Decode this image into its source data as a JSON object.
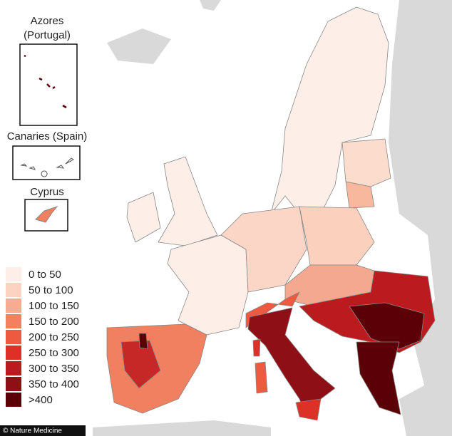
{
  "insets": [
    {
      "title_lines": [
        "Azores",
        "(Portugal)"
      ]
    },
    {
      "title_lines": [
        "Canaries (Spain)"
      ]
    },
    {
      "title_lines": [
        "Cyprus"
      ]
    }
  ],
  "legend": {
    "items": [
      {
        "label": "0 to 50",
        "color": "#fdeee8"
      },
      {
        "label": "50 to 100",
        "color": "#fcd3c1"
      },
      {
        "label": "100 to 150",
        "color": "#f9ab90"
      },
      {
        "label": "150 to 200",
        "color": "#f5805f"
      },
      {
        "label": "200 to 250",
        "color": "#ee5a40"
      },
      {
        "label": "250 to 300",
        "color": "#dd3027"
      },
      {
        "label": "300 to 350",
        "color": "#bb1a1f"
      },
      {
        "label": "350 to 400",
        "color": "#8e0f16"
      },
      {
        "label": ">400",
        "color": "#5c0008"
      }
    ]
  },
  "credit": "© Nature Medicine"
}
